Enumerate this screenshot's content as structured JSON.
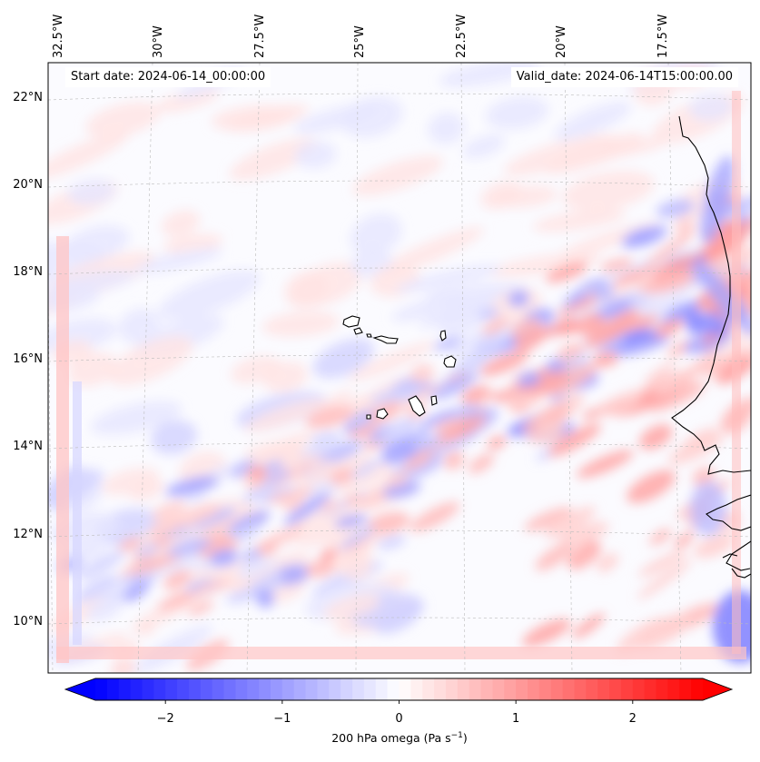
{
  "map": {
    "start_date_text": "Start date: 2024-06-14_00:00:00",
    "valid_date_text": "Valid_date: 2024-06-14T15:00:00.00",
    "lon_labels": [
      "32.5°W",
      "30°W",
      "27.5°W",
      "25°W",
      "22.5°W",
      "20°W",
      "17.5°W"
    ],
    "lat_labels": [
      "22°N",
      "20°N",
      "18°N",
      "16°N",
      "14°N",
      "12°N",
      "10°N"
    ],
    "variable": "200 hPa omega"
  },
  "colorbar": {
    "label_main": "200 hPa omega (Pa s",
    "label_sup": "−1",
    "label_end": ")",
    "ticks": [
      "−2",
      "−1",
      "0",
      "1",
      "2"
    ],
    "tick_values": [
      -2,
      -1,
      0,
      1,
      2
    ],
    "range": [
      -2.6,
      2.6
    ],
    "extend": "both",
    "colormap": "bwr",
    "low_color": "#0000ff",
    "mid_color": "#ffffff",
    "high_color": "#ff0000"
  },
  "colors": {
    "coastline": "#000000",
    "gridline": "#bbbbbb"
  }
}
